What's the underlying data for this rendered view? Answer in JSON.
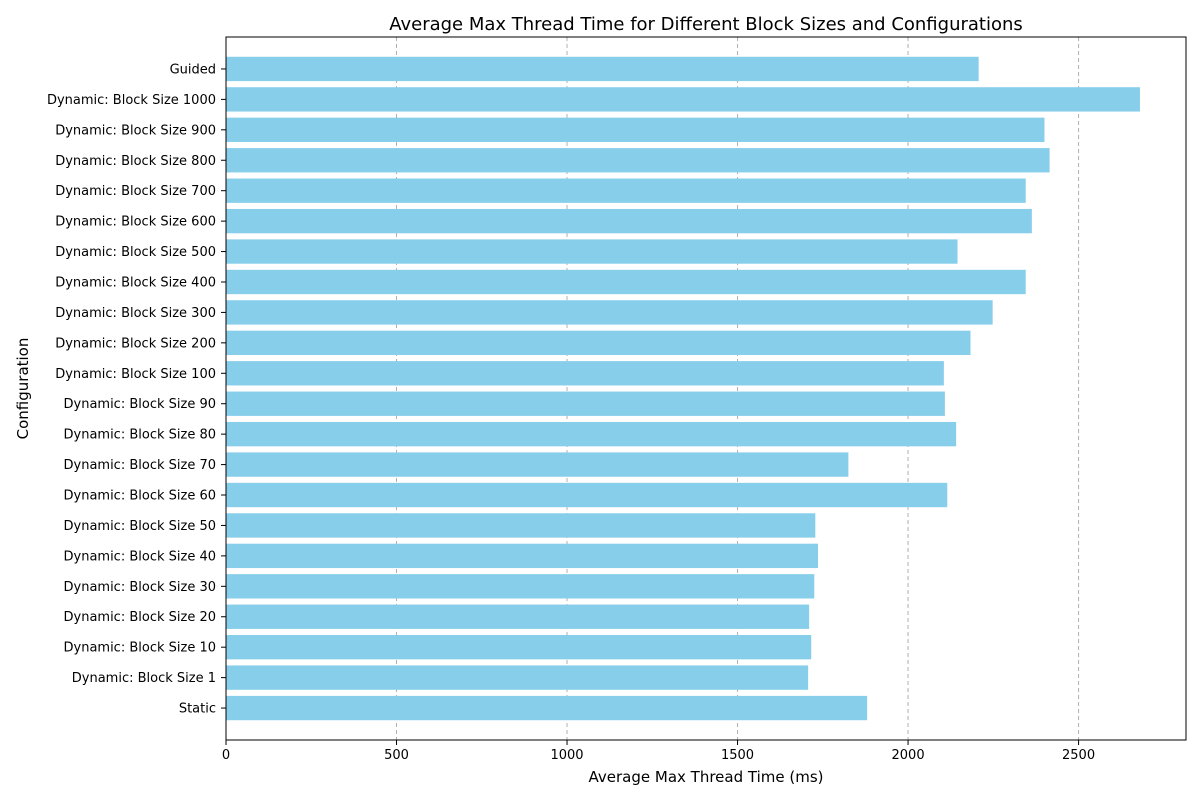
{
  "chart_data": {
    "type": "bar",
    "orientation": "horizontal",
    "title": "Average Max Thread Time for Different Block Sizes and Configurations",
    "xlabel": "Average Max Thread Time (ms)",
    "ylabel": "Configuration",
    "xlim": [
      0,
      2815
    ],
    "xticks": [
      0,
      500,
      1000,
      1500,
      2000,
      2500
    ],
    "xtick_labels": [
      "0",
      "500",
      "1000",
      "1500",
      "2000",
      "2500"
    ],
    "grid": "x-axis dashed",
    "bar_color": "#87CEEB",
    "categories": [
      "Static",
      "Dynamic: Block Size 1",
      "Dynamic: Block Size 10",
      "Dynamic: Block Size 20",
      "Dynamic: Block Size 30",
      "Dynamic: Block Size 40",
      "Dynamic: Block Size 50",
      "Dynamic: Block Size 60",
      "Dynamic: Block Size 70",
      "Dynamic: Block Size 80",
      "Dynamic: Block Size 90",
      "Dynamic: Block Size 100",
      "Dynamic: Block Size 200",
      "Dynamic: Block Size 300",
      "Dynamic: Block Size 400",
      "Dynamic: Block Size 500",
      "Dynamic: Block Size 600",
      "Dynamic: Block Size 700",
      "Dynamic: Block Size 800",
      "Dynamic: Block Size 900",
      "Dynamic: Block Size 1000",
      "Guided"
    ],
    "values": [
      1880,
      1707,
      1716,
      1710,
      1725,
      1736,
      1728,
      2115,
      1825,
      2141,
      2108,
      2105,
      2183,
      2248,
      2345,
      2145,
      2363,
      2345,
      2415,
      2400,
      2680,
      2207
    ]
  }
}
